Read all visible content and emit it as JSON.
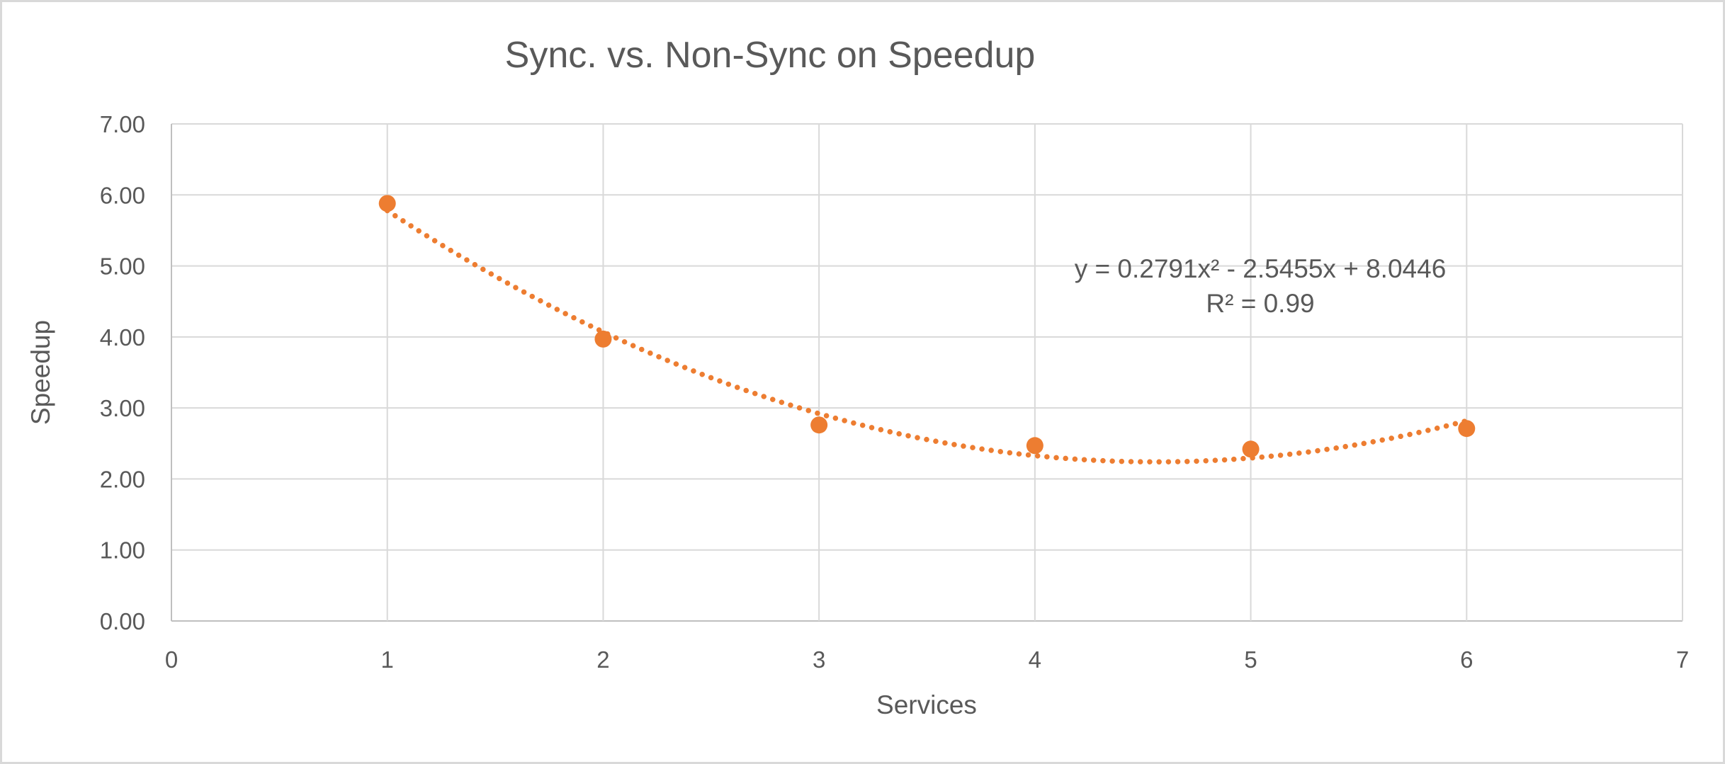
{
  "chart_data": {
    "type": "scatter",
    "title": "Sync. vs. Non-Sync on Speedup",
    "xlabel": "Services",
    "ylabel": "Speedup",
    "xlim": [
      0,
      7
    ],
    "ylim": [
      0,
      7
    ],
    "x_ticks": [
      "0",
      "1",
      "2",
      "3",
      "4",
      "5",
      "6",
      "7"
    ],
    "y_ticks": [
      "0.00",
      "1.00",
      "2.00",
      "3.00",
      "4.00",
      "5.00",
      "6.00",
      "7.00"
    ],
    "grid": true,
    "gridline_color": "#d9d9d9",
    "axis_line_color": "#bfbfbf",
    "tick_label_color": "#595959",
    "series": [
      {
        "name": "Speedup",
        "color": "#ED7D31",
        "marker": "circle",
        "points": [
          {
            "x": 1,
            "y": 5.88
          },
          {
            "x": 2,
            "y": 3.97
          },
          {
            "x": 3,
            "y": 2.76
          },
          {
            "x": 4,
            "y": 2.47
          },
          {
            "x": 5,
            "y": 2.42
          },
          {
            "x": 6,
            "y": 2.71
          }
        ]
      }
    ],
    "trendline": {
      "type": "polynomial",
      "order": 2,
      "coefficients": {
        "a": 0.2791,
        "b": -2.5455,
        "c": 8.0446
      },
      "r2": 0.99,
      "x_range": [
        1,
        6
      ],
      "style": "dotted",
      "color": "#ED7D31",
      "label_lines": [
        "y = 0.2791x² - 2.5455x + 8.0446",
        "R² = 0.99"
      ]
    }
  }
}
